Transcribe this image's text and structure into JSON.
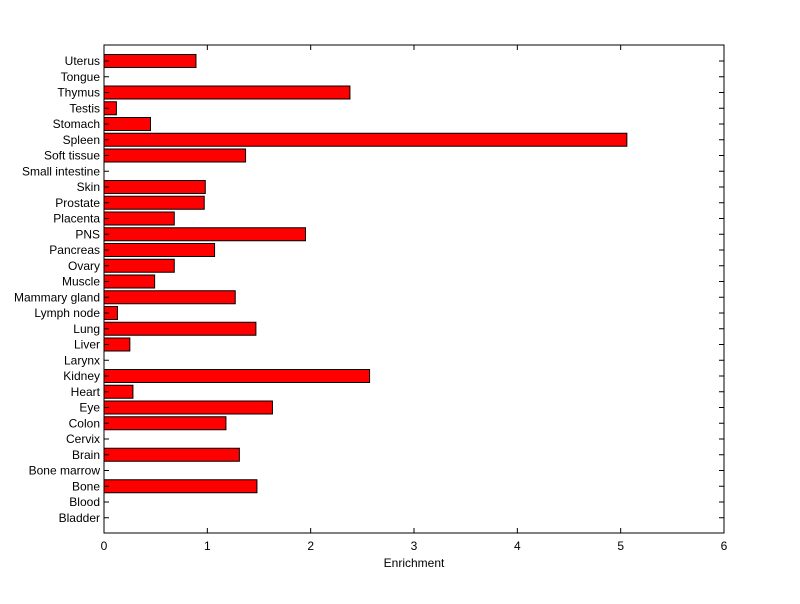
{
  "chart_data": {
    "type": "bar",
    "orientation": "horizontal",
    "xlabel": "Enrichment",
    "ylabel": "",
    "title": "",
    "xlim": [
      0,
      6
    ],
    "x_ticks": [
      0,
      1,
      2,
      3,
      4,
      5,
      6
    ],
    "grid": false,
    "bar_color": "#ff0000",
    "bar_edge_color": "#000000",
    "categories": [
      "Uterus",
      "Tongue",
      "Thymus",
      "Testis",
      "Stomach",
      "Spleen",
      "Soft tissue",
      "Small intestine",
      "Skin",
      "Prostate",
      "Placenta",
      "PNS",
      "Pancreas",
      "Ovary",
      "Muscle",
      "Mammary gland",
      "Lymph node",
      "Lung",
      "Liver",
      "Larynx",
      "Kidney",
      "Heart",
      "Eye",
      "Colon",
      "Cervix",
      "Brain",
      "Bone marrow",
      "Bone",
      "Blood",
      "Bladder"
    ],
    "values": [
      0.89,
      0,
      2.38,
      0.12,
      0.45,
      5.06,
      1.37,
      0,
      0.98,
      0.97,
      0.68,
      1.95,
      1.07,
      0.68,
      0.49,
      1.27,
      0.13,
      1.47,
      0.25,
      0,
      2.57,
      0.28,
      1.63,
      1.18,
      0,
      1.31,
      0,
      1.48,
      0,
      0
    ]
  }
}
